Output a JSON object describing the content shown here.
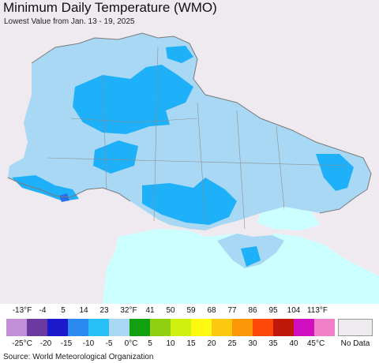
{
  "title": "Minimum Daily Temperature (WMO)",
  "subtitle": "Lowest Value from Jan. 13 - 19, 2025",
  "source": "Source: World Meteorological Organization",
  "legend": {
    "fahrenheit": [
      "-13°F",
      "-4",
      "5",
      "14",
      "23",
      "32°F",
      "41",
      "50",
      "59",
      "68",
      "77",
      "86",
      "95",
      "104",
      "113°F"
    ],
    "celsius": [
      "-25°C",
      "-20",
      "-15",
      "-10",
      "-5",
      "0°C",
      "5",
      "10",
      "15",
      "20",
      "25",
      "30",
      "35",
      "40",
      "45°C"
    ],
    "colors": [
      "#c08fd8",
      "#6a3aa0",
      "#1a1acc",
      "#2a8af0",
      "#28c0f4",
      "#a8d8f4",
      "#10a010",
      "#90d010",
      "#d0f010",
      "#fff810",
      "#fcc810",
      "#fc9808",
      "#fc4808",
      "#c01808",
      "#d010c0",
      "#f080c8"
    ],
    "no_data": "No Data",
    "no_data_color": "#efeaf0"
  },
  "map_colors": {
    "light_blue": "#a8d8f4",
    "medium_blue": "#1eb0f8",
    "dark_blue": "#2a6ee8",
    "sea": "#ccffff",
    "no_data": "#efeaf0",
    "border": "#7a7a7a"
  }
}
